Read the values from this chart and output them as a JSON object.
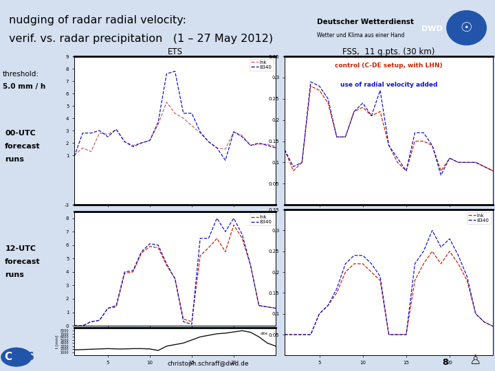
{
  "title_line1": "nudging of radar radial velocity:",
  "title_line2": "verif. vs. radar precipitation   (1 – 27 May 2012)",
  "ets_title": "ETS",
  "fss_title": "FSS,  11 g.pts. (30 km)",
  "fss_legend1": "control (C-DE setup, with LHN)",
  "fss_legend2": "use of radial velocity added",
  "legend_lnk": "lnk",
  "legend_8340": "8340",
  "color_red": "#CC2200",
  "color_blue": "#1111CC",
  "color_salmon": "#CC6666",
  "color_black": "#111111",
  "bg_color": "#D4DFF0",
  "plot_bg": "#FFFFFF",
  "sep_color": "#3355AA",
  "ets_00_x": [
    1,
    2,
    3,
    4,
    5,
    6,
    7,
    8,
    9,
    10,
    11,
    12,
    13,
    14,
    15,
    16,
    17,
    18,
    19,
    20,
    21,
    22,
    23,
    24,
    25
  ],
  "ets_00_lnk": [
    1.0,
    1.6,
    1.3,
    2.8,
    2.7,
    3.1,
    2.1,
    1.8,
    2.0,
    2.2,
    3.5,
    5.3,
    4.4,
    4.0,
    3.4,
    2.8,
    2.1,
    1.6,
    1.5,
    2.9,
    2.6,
    1.8,
    1.9,
    1.9,
    1.7
  ],
  "ets_00_8340": [
    0.9,
    2.8,
    2.8,
    3.0,
    2.5,
    3.1,
    2.1,
    1.7,
    2.0,
    2.2,
    3.7,
    7.6,
    7.8,
    4.4,
    4.4,
    2.9,
    2.1,
    1.6,
    0.6,
    2.9,
    2.5,
    1.8,
    2.0,
    1.8,
    1.6
  ],
  "ets_12_x": [
    1,
    2,
    3,
    4,
    5,
    6,
    7,
    8,
    9,
    10,
    11,
    12,
    13,
    14,
    15,
    16,
    17,
    18,
    19,
    20,
    21,
    22,
    23,
    24,
    25
  ],
  "ets_12_lnk": [
    0.0,
    0.0,
    0.3,
    0.4,
    1.3,
    1.4,
    3.9,
    4.0,
    5.4,
    5.9,
    5.8,
    4.5,
    3.5,
    0.5,
    0.3,
    5.2,
    5.8,
    6.5,
    5.5,
    7.5,
    6.5,
    4.5,
    1.5,
    1.4,
    1.3
  ],
  "ets_12_8340": [
    0.0,
    0.0,
    0.3,
    0.4,
    1.3,
    1.5,
    4.0,
    4.1,
    5.5,
    6.1,
    6.0,
    4.6,
    3.5,
    0.3,
    0.1,
    6.5,
    6.5,
    8.0,
    7.0,
    8.0,
    6.8,
    4.5,
    1.5,
    1.4,
    1.3
  ],
  "fss_00_x": [
    1,
    2,
    3,
    4,
    5,
    6,
    7,
    8,
    9,
    10,
    11,
    12,
    13,
    14,
    15,
    16,
    17,
    18,
    19,
    20,
    21,
    22,
    23,
    24,
    25
  ],
  "fss_00_lnk": [
    0.13,
    0.08,
    0.1,
    0.28,
    0.27,
    0.24,
    0.16,
    0.16,
    0.22,
    0.23,
    0.21,
    0.22,
    0.14,
    0.1,
    0.08,
    0.15,
    0.15,
    0.14,
    0.08,
    0.11,
    0.1,
    0.1,
    0.1,
    0.09,
    0.08
  ],
  "fss_00_8340": [
    0.13,
    0.09,
    0.1,
    0.29,
    0.28,
    0.25,
    0.16,
    0.16,
    0.22,
    0.24,
    0.21,
    0.27,
    0.14,
    0.11,
    0.08,
    0.17,
    0.17,
    0.14,
    0.07,
    0.11,
    0.1,
    0.1,
    0.1,
    0.09,
    0.08
  ],
  "fss_12_x": [
    1,
    2,
    3,
    4,
    5,
    6,
    7,
    8,
    9,
    10,
    11,
    12,
    13,
    14,
    15,
    16,
    17,
    18,
    19,
    20,
    21,
    22,
    23,
    24,
    25
  ],
  "fss_12_lnk": [
    0.05,
    0.05,
    0.05,
    0.05,
    0.1,
    0.12,
    0.15,
    0.2,
    0.22,
    0.22,
    0.2,
    0.18,
    0.05,
    0.05,
    0.05,
    0.18,
    0.22,
    0.25,
    0.22,
    0.25,
    0.22,
    0.18,
    0.1,
    0.08,
    0.07
  ],
  "fss_12_8340": [
    0.05,
    0.05,
    0.05,
    0.05,
    0.1,
    0.12,
    0.16,
    0.22,
    0.24,
    0.24,
    0.22,
    0.19,
    0.05,
    0.05,
    0.05,
    0.22,
    0.25,
    0.3,
    0.26,
    0.28,
    0.24,
    0.19,
    0.1,
    0.08,
    0.07
  ],
  "cum_x": [
    1,
    2,
    3,
    4,
    5,
    6,
    7,
    8,
    9,
    10,
    11,
    12,
    13,
    14,
    15,
    16,
    17,
    18,
    19,
    20,
    21,
    22,
    23,
    24,
    25
  ],
  "cum_y": [
    1800,
    1900,
    2000,
    2100,
    2200,
    2100,
    2100,
    2200,
    2200,
    2100,
    1600,
    3000,
    3500,
    4000,
    5000,
    6000,
    6500,
    7000,
    7200,
    7600,
    8000,
    7500,
    6000,
    4000,
    3000
  ],
  "footer_email": "christoph.schraff@dwd.de",
  "footer_num": "8"
}
